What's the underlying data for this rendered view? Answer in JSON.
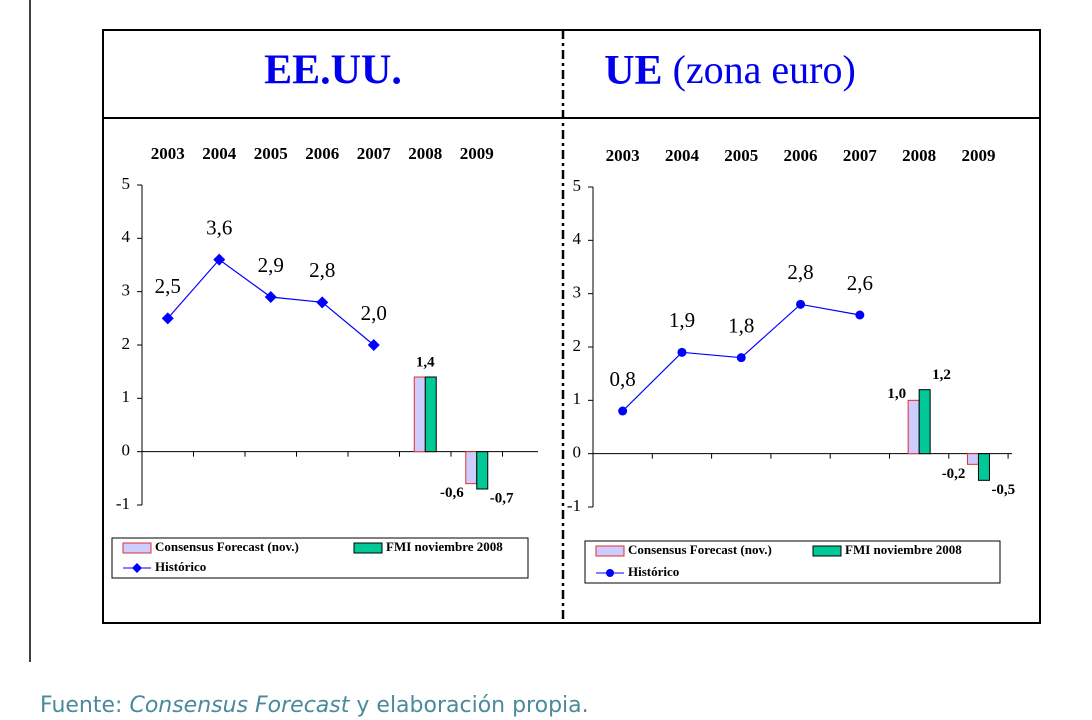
{
  "chart_data": [
    {
      "type": "bar-line",
      "title": "EE.UU.",
      "categories": [
        "2003",
        "2004",
        "2005",
        "2006",
        "2007",
        "2008",
        "2009"
      ],
      "ylim": [
        -1,
        5
      ],
      "yticks": [
        -1,
        0,
        1,
        2,
        3,
        4,
        5
      ],
      "series": [
        {
          "name": "Consensus Forecast (nov.)",
          "kind": "bar",
          "color": "#ccccff",
          "stroke": "#e03030",
          "values": [
            null,
            null,
            null,
            null,
            null,
            1.4,
            -0.6
          ],
          "value_labels": [
            null,
            null,
            null,
            null,
            null,
            "1,4",
            "-0,6"
          ]
        },
        {
          "name": "FMI noviembre 2008",
          "kind": "bar",
          "color": "#00c896",
          "stroke": "#000000",
          "values": [
            null,
            null,
            null,
            null,
            null,
            1.4,
            -0.7
          ],
          "value_labels": [
            null,
            null,
            null,
            null,
            null,
            null,
            "-0,7"
          ]
        },
        {
          "name": "Histórico",
          "kind": "line",
          "marker": "diamond",
          "color": "#0000ff",
          "values": [
            2.5,
            3.6,
            2.9,
            2.8,
            2.0,
            null,
            null
          ],
          "value_labels": [
            "2,5",
            "3,6",
            "2,9",
            "2,8",
            "2,0",
            null,
            null
          ]
        }
      ]
    },
    {
      "type": "bar-line",
      "title": "UE",
      "subtitle": "(zona euro)",
      "categories": [
        "2003",
        "2004",
        "2005",
        "2006",
        "2007",
        "2008",
        "2009"
      ],
      "ylim": [
        -1,
        5
      ],
      "yticks": [
        -1,
        0,
        1,
        2,
        3,
        4,
        5
      ],
      "series": [
        {
          "name": "Consensus Forecast (nov.)",
          "kind": "bar",
          "color": "#ccccff",
          "stroke": "#e03030",
          "values": [
            null,
            null,
            null,
            null,
            null,
            1.0,
            -0.2
          ],
          "value_labels": [
            null,
            null,
            null,
            null,
            null,
            "1,0",
            "-0,2"
          ]
        },
        {
          "name": "FMI noviembre 2008",
          "kind": "bar",
          "color": "#00c896",
          "stroke": "#000000",
          "values": [
            null,
            null,
            null,
            null,
            null,
            1.2,
            -0.5
          ],
          "value_labels": [
            null,
            null,
            null,
            null,
            null,
            "1,2",
            "-0,5"
          ]
        },
        {
          "name": "Histórico",
          "kind": "line",
          "marker": "circle",
          "color": "#0000ff",
          "values": [
            0.8,
            1.9,
            1.8,
            2.8,
            2.6,
            null,
            null
          ],
          "value_labels": [
            "0,8",
            "1,9",
            "1,8",
            "2,8",
            "2,6",
            null,
            null
          ]
        }
      ]
    }
  ],
  "footer": {
    "label": "Fuente:",
    "italic": "Consensus Forecast",
    "rest": "y elaboración propia."
  }
}
